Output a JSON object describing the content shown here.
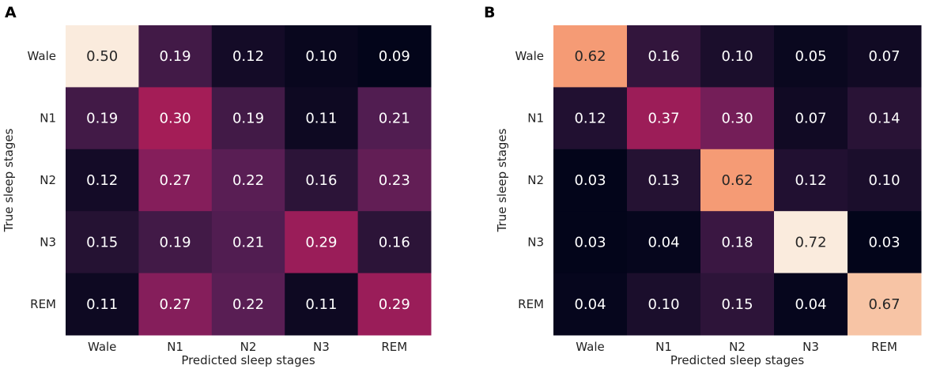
{
  "chart_data": [
    {
      "type": "heatmap",
      "panel_label": "A",
      "xlabel": "Predicted sleep stages",
      "ylabel": "True sleep stages",
      "x_categories": [
        "Wale",
        "N1",
        "N2",
        "N3",
        "REM"
      ],
      "y_categories": [
        "Wale",
        "N1",
        "N2",
        "N3",
        "REM"
      ],
      "values": [
        [
          0.5,
          0.19,
          0.12,
          0.1,
          0.09
        ],
        [
          0.19,
          0.3,
          0.19,
          0.11,
          0.21
        ],
        [
          0.12,
          0.27,
          0.22,
          0.16,
          0.23
        ],
        [
          0.15,
          0.19,
          0.21,
          0.29,
          0.16
        ],
        [
          0.11,
          0.27,
          0.22,
          0.11,
          0.29
        ]
      ],
      "value_format": "0.00",
      "colormap": "rocket"
    },
    {
      "type": "heatmap",
      "panel_label": "B",
      "xlabel": "Predicted sleep stages",
      "ylabel": "True sleep stages",
      "x_categories": [
        "Wale",
        "N1",
        "N2",
        "N3",
        "REM"
      ],
      "y_categories": [
        "Wale",
        "N1",
        "N2",
        "N3",
        "REM"
      ],
      "values": [
        [
          0.62,
          0.16,
          0.1,
          0.05,
          0.07
        ],
        [
          0.12,
          0.37,
          0.3,
          0.07,
          0.14
        ],
        [
          0.03,
          0.13,
          0.62,
          0.12,
          0.1
        ],
        [
          0.03,
          0.04,
          0.18,
          0.72,
          0.03
        ],
        [
          0.04,
          0.1,
          0.15,
          0.04,
          0.67
        ]
      ],
      "value_format": "0.00",
      "colormap": "rocket"
    }
  ]
}
